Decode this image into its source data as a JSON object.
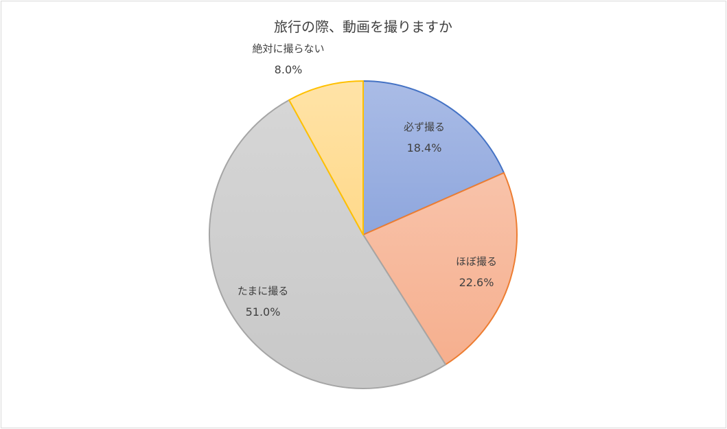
{
  "chart_data": {
    "type": "pie",
    "title": "旅行の際、動画を撮りますか",
    "start_angle_deg": 0,
    "direction": "clockwise",
    "slices": [
      {
        "label": "必ず撮る",
        "value": 18.4,
        "value_label": "18.4%",
        "color": "#8EA6DD",
        "stroke": "#4472C4"
      },
      {
        "label": "ほぼ撮る",
        "value": 22.6,
        "value_label": "22.6%",
        "color": "#F6AF8E",
        "stroke": "#ED7D31"
      },
      {
        "label": "たまに撮る",
        "value": 51.0,
        "value_label": "51.0%",
        "color": "#C8C8C8",
        "stroke": "#A5A5A5"
      },
      {
        "label": "絶対に撮らない",
        "value": 8.0,
        "value_label": "8.0%",
        "color": "#FFD98A",
        "stroke": "#FFC000"
      }
    ]
  }
}
